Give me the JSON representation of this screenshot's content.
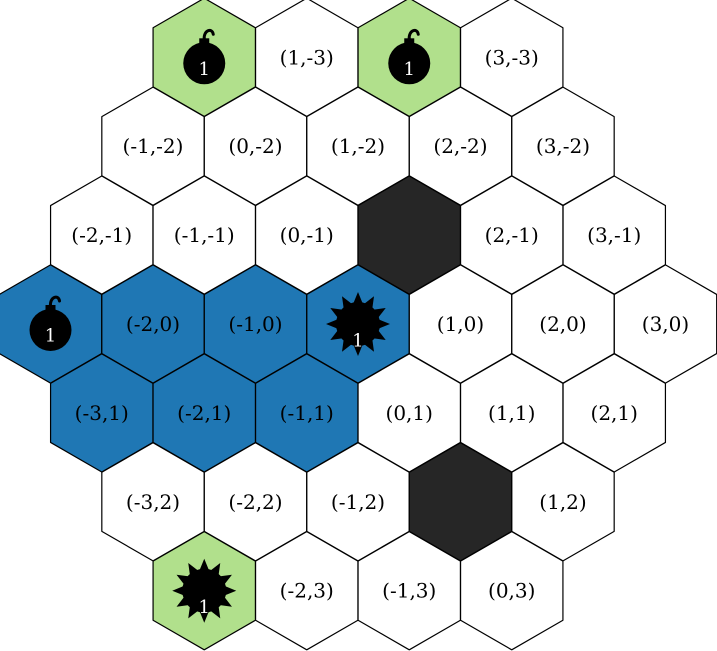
{
  "board": {
    "colors": {
      "empty": "#ffffff",
      "region": "#1f77b4",
      "goal": "#b1e08c",
      "blocked": "#262626",
      "stroke": "#000000",
      "icon": "#000000",
      "icon_text": "#ffffff"
    },
    "cells": [
      {
        "q": 0,
        "r": -3,
        "label": "",
        "state": "goal",
        "icon": "bomb-icon",
        "count": "1"
      },
      {
        "q": 1,
        "r": -3,
        "label": "(1,-3)",
        "state": "empty"
      },
      {
        "q": 2,
        "r": -3,
        "label": "",
        "state": "goal",
        "icon": "bomb-icon",
        "count": "1"
      },
      {
        "q": 3,
        "r": -3,
        "label": "(3,-3)",
        "state": "empty"
      },
      {
        "q": -1,
        "r": -2,
        "label": "(-1,-2)",
        "state": "empty"
      },
      {
        "q": 0,
        "r": -2,
        "label": "(0,-2)",
        "state": "empty"
      },
      {
        "q": 1,
        "r": -2,
        "label": "(1,-2)",
        "state": "empty"
      },
      {
        "q": 2,
        "r": -2,
        "label": "(2,-2)",
        "state": "empty"
      },
      {
        "q": 3,
        "r": -2,
        "label": "(3,-2)",
        "state": "empty"
      },
      {
        "q": -2,
        "r": -1,
        "label": "(-2,-1)",
        "state": "empty"
      },
      {
        "q": -1,
        "r": -1,
        "label": "(-1,-1)",
        "state": "empty"
      },
      {
        "q": 0,
        "r": -1,
        "label": "(0,-1)",
        "state": "empty"
      },
      {
        "q": 1,
        "r": -1,
        "label": "",
        "state": "blocked"
      },
      {
        "q": 2,
        "r": -1,
        "label": "(2,-1)",
        "state": "empty"
      },
      {
        "q": 3,
        "r": -1,
        "label": "(3,-1)",
        "state": "empty"
      },
      {
        "q": -3,
        "r": 0,
        "label": "",
        "state": "region",
        "icon": "bomb-icon",
        "count": "1"
      },
      {
        "q": -2,
        "r": 0,
        "label": "(-2,0)",
        "state": "region"
      },
      {
        "q": -1,
        "r": 0,
        "label": "(-1,0)",
        "state": "region"
      },
      {
        "q": 0,
        "r": 0,
        "label": "",
        "state": "region",
        "icon": "mine-icon",
        "count": "1"
      },
      {
        "q": 1,
        "r": 0,
        "label": "(1,0)",
        "state": "empty"
      },
      {
        "q": 2,
        "r": 0,
        "label": "(2,0)",
        "state": "empty"
      },
      {
        "q": 3,
        "r": 0,
        "label": "(3,0)",
        "state": "empty"
      },
      {
        "q": -3,
        "r": 1,
        "label": "(-3,1)",
        "state": "region"
      },
      {
        "q": -2,
        "r": 1,
        "label": "(-2,1)",
        "state": "region"
      },
      {
        "q": -1,
        "r": 1,
        "label": "(-1,1)",
        "state": "region"
      },
      {
        "q": 0,
        "r": 1,
        "label": "(0,1)",
        "state": "empty"
      },
      {
        "q": 1,
        "r": 1,
        "label": "(1,1)",
        "state": "empty"
      },
      {
        "q": 2,
        "r": 1,
        "label": "(2,1)",
        "state": "empty"
      },
      {
        "q": -3,
        "r": 2,
        "label": "(-3,2)",
        "state": "empty"
      },
      {
        "q": -2,
        "r": 2,
        "label": "(-2,2)",
        "state": "empty"
      },
      {
        "q": -1,
        "r": 2,
        "label": "(-1,2)",
        "state": "empty"
      },
      {
        "q": 0,
        "r": 2,
        "label": "",
        "state": "blocked"
      },
      {
        "q": 1,
        "r": 2,
        "label": "(1,2)",
        "state": "empty"
      },
      {
        "q": -3,
        "r": 3,
        "label": "",
        "state": "goal",
        "icon": "mine-icon",
        "count": "1"
      },
      {
        "q": -2,
        "r": 3,
        "label": "(-2,3)",
        "state": "empty"
      },
      {
        "q": -1,
        "r": 3,
        "label": "(-1,3)",
        "state": "empty"
      },
      {
        "q": 0,
        "r": 3,
        "label": "(0,3)",
        "state": "empty"
      }
    ]
  }
}
